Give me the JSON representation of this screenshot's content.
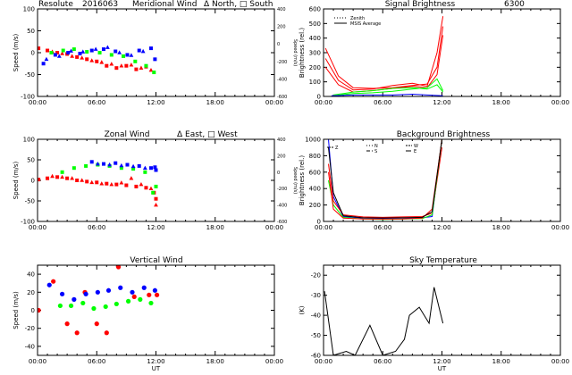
{
  "colors": {
    "red": "#ff0000",
    "green": "#00ff00",
    "blue": "#0000ff",
    "black": "#000000"
  },
  "chart_data": [
    {
      "id": "meridional",
      "type": "scatter",
      "title_parts": [
        "Resolute",
        "2016063",
        "Meridional Wind",
        "Δ North, □ South"
      ],
      "xlabel": "",
      "ylabel": "Speed (m/s)",
      "ylabel_right": "Speed (m/s)",
      "xlim": [
        0,
        24
      ],
      "ylim": [
        -100,
        100
      ],
      "xticks": [
        0,
        6,
        12,
        18,
        24
      ],
      "yticks": [
        -100,
        -50,
        0,
        50,
        100
      ],
      "y2lim": [
        -600,
        400
      ],
      "y2ticks": [
        -600,
        -400,
        -200,
        0,
        200,
        400
      ],
      "series": [
        {
          "color": "red",
          "marker": "square",
          "x": [
            0.1,
            1.0,
            2.0,
            3.0,
            4.0,
            5.0,
            6.0,
            7.0,
            8.0,
            9.0,
            10.0,
            11.0
          ],
          "y": [
            10,
            5,
            0,
            -3,
            -10,
            -15,
            -20,
            -30,
            -35,
            -30,
            -38,
            -32
          ]
        },
        {
          "color": "red",
          "marker": "triangle",
          "x": [
            1.5,
            2.5,
            3.5,
            4.5,
            5.5,
            6.5,
            7.5,
            8.5,
            9.5,
            10.5,
            11.5
          ],
          "y": [
            2,
            -2,
            -8,
            -12,
            -18,
            -22,
            -26,
            -30,
            -28,
            -35,
            -40
          ]
        },
        {
          "color": "green",
          "marker": "square",
          "x": [
            1.4,
            2.6,
            3.7,
            5.0,
            6.3,
            7.5,
            8.7,
            9.9,
            11.0,
            11.8
          ],
          "y": [
            0,
            5,
            8,
            2,
            0,
            -5,
            -8,
            -20,
            -30,
            -45
          ]
        },
        {
          "color": "blue",
          "marker": "square",
          "x": [
            0.6,
            1.8,
            3.1,
            4.3,
            5.5,
            6.7,
            7.9,
            9.1,
            10.3,
            11.5,
            11.9
          ],
          "y": [
            -25,
            -5,
            0,
            -2,
            5,
            8,
            3,
            -5,
            5,
            10,
            -15
          ]
        },
        {
          "color": "blue",
          "marker": "triangle",
          "x": [
            0.9,
            2.2,
            3.4,
            4.6,
            5.9,
            7.1,
            8.3,
            9.5,
            10.7
          ],
          "y": [
            -15,
            -8,
            4,
            2,
            8,
            12,
            0,
            -6,
            3
          ]
        }
      ]
    },
    {
      "id": "signal",
      "type": "line",
      "title_parts": [
        "Signal Brightness",
        "6300"
      ],
      "xlabel": "",
      "ylabel": "Brightness (rel.)",
      "xlim": [
        0,
        24
      ],
      "ylim": [
        0,
        600
      ],
      "xticks": [
        0,
        6,
        12,
        18,
        24
      ],
      "yticks": [
        0,
        100,
        200,
        300,
        400,
        500,
        600
      ],
      "legend": [
        "Zenith",
        "MSIS Average"
      ],
      "series": [
        {
          "color": "red",
          "x": [
            0.2,
            1.5,
            3,
            5,
            7,
            9,
            10.5,
            11.5,
            12.1
          ],
          "y": [
            330,
            140,
            60,
            55,
            60,
            75,
            85,
            200,
            480
          ]
        },
        {
          "color": "red",
          "x": [
            0.2,
            1.5,
            3,
            5,
            7,
            9,
            10.5,
            11.5,
            12.1
          ],
          "y": [
            260,
            110,
            45,
            50,
            75,
            90,
            70,
            300,
            550
          ]
        },
        {
          "color": "red",
          "x": [
            0.2,
            1.5,
            3,
            5,
            7,
            9,
            10.5,
            11.5,
            12.1
          ],
          "y": [
            200,
            80,
            30,
            40,
            55,
            70,
            60,
            150,
            420
          ]
        },
        {
          "color": "green",
          "x": [
            1.0,
            3,
            5,
            7,
            9,
            10.5,
            11.5,
            12.1
          ],
          "y": [
            10,
            30,
            40,
            55,
            60,
            50,
            80,
            30
          ]
        },
        {
          "color": "green",
          "x": [
            1.0,
            3,
            5,
            7,
            9,
            10.5,
            11.5,
            12.1
          ],
          "y": [
            5,
            20,
            25,
            35,
            50,
            60,
            120,
            40
          ]
        },
        {
          "color": "blue",
          "x": [
            0.8,
            3,
            5,
            7,
            9,
            10.5,
            12.1
          ],
          "y": [
            5,
            10,
            10,
            10,
            15,
            10,
            5
          ]
        }
      ]
    },
    {
      "id": "zonal",
      "type": "scatter",
      "title_parts": [
        "Zonal Wind",
        "Δ East, □ West"
      ],
      "xlabel": "",
      "ylabel": "Speed (m/s)",
      "ylabel_right": "Speed (m/s)",
      "xlim": [
        0,
        24
      ],
      "ylim": [
        -100,
        100
      ],
      "xticks": [
        0,
        6,
        12,
        18,
        24
      ],
      "yticks": [
        -100,
        -50,
        0,
        50,
        100
      ],
      "y2lim": [
        -600,
        400
      ],
      "y2ticks": [
        -600,
        -400,
        -200,
        0,
        200,
        400
      ],
      "series": [
        {
          "color": "red",
          "marker": "square",
          "x": [
            0.1,
            1.0,
            2.0,
            3.0,
            4.0,
            5.0,
            6.0,
            7.0,
            8.0,
            9.0,
            10.0,
            11.0,
            11.8,
            12.0
          ],
          "y": [
            2,
            5,
            8,
            5,
            0,
            -3,
            -5,
            -8,
            -10,
            -12,
            -15,
            -18,
            -30,
            -45
          ]
        },
        {
          "color": "red",
          "marker": "triangle",
          "x": [
            1.5,
            2.5,
            3.5,
            4.5,
            5.5,
            6.5,
            7.5,
            8.5,
            9.5,
            10.5,
            11.5,
            12.0
          ],
          "y": [
            10,
            8,
            5,
            0,
            -5,
            -8,
            -10,
            -6,
            5,
            -10,
            -20,
            -60
          ]
        },
        {
          "color": "green",
          "marker": "square",
          "x": [
            2.5,
            3.7,
            4.9,
            6.1,
            7.3,
            8.5,
            9.7,
            10.9,
            11.7,
            12.0
          ],
          "y": [
            20,
            30,
            35,
            38,
            35,
            30,
            28,
            20,
            -30,
            -15
          ]
        },
        {
          "color": "blue",
          "marker": "square",
          "x": [
            5.5,
            6.7,
            7.9,
            9.1,
            10.3,
            11.5,
            11.9,
            12.0
          ],
          "y": [
            45,
            40,
            42,
            38,
            35,
            30,
            32,
            25
          ]
        },
        {
          "color": "blue",
          "marker": "triangle",
          "x": [
            6.1,
            7.3,
            8.5,
            9.7,
            10.9
          ],
          "y": [
            40,
            38,
            36,
            34,
            30
          ]
        }
      ]
    },
    {
      "id": "background",
      "type": "line",
      "title_parts": [
        "Background Brightness"
      ],
      "xlabel": "",
      "ylabel": "Brightness (rel.)",
      "xlim": [
        0,
        24
      ],
      "ylim": [
        0,
        1000
      ],
      "xticks": [
        0,
        6,
        12,
        18,
        24
      ],
      "yticks": [
        0,
        200,
        400,
        600,
        800,
        1000
      ],
      "legend": [
        "Z",
        "N",
        "S",
        "W",
        "E"
      ],
      "series": [
        {
          "color": "blue",
          "x": [
            0.5,
            1.0,
            2.0,
            4.0,
            6.0,
            8.0,
            10.0,
            11.0,
            12.0
          ],
          "y": [
            1000,
            300,
            60,
            40,
            38,
            40,
            45,
            60,
            1000
          ]
        },
        {
          "color": "red",
          "x": [
            0.5,
            1.0,
            2.0,
            4.0,
            6.0,
            8.0,
            10.0,
            11.0,
            12.0
          ],
          "y": [
            700,
            250,
            80,
            55,
            50,
            55,
            60,
            100,
            900
          ]
        },
        {
          "color": "green",
          "x": [
            0.5,
            1.0,
            2.0,
            4.0,
            6.0,
            8.0,
            10.0,
            11.0,
            12.0
          ],
          "y": [
            500,
            200,
            50,
            30,
            25,
            28,
            35,
            80,
            1000
          ]
        },
        {
          "color": "red",
          "x": [
            0.5,
            1.0,
            2.0,
            4.0,
            6.0,
            8.0,
            10.0,
            11.0,
            12.0
          ],
          "y": [
            600,
            150,
            40,
            30,
            28,
            30,
            40,
            150,
            1000
          ]
        },
        {
          "color": "black",
          "x": [
            0.5,
            1.0,
            2.0,
            4.0,
            6.0,
            8.0,
            10.0,
            11.0,
            12.0
          ],
          "y": [
            900,
            350,
            70,
            45,
            42,
            45,
            50,
            120,
            1000
          ]
        }
      ]
    },
    {
      "id": "vertical",
      "type": "scatter",
      "title_parts": [
        "Vertical Wind"
      ],
      "xlabel": "UT",
      "ylabel": "Speed (m/s)",
      "xlim": [
        0,
        24
      ],
      "ylim": [
        -50,
        50
      ],
      "xticks": [
        0,
        6,
        12,
        18,
        24
      ],
      "yticks": [
        -40,
        -20,
        0,
        20,
        40
      ],
      "series": [
        {
          "color": "red",
          "marker": "circle",
          "x": [
            0.1,
            1.6,
            3.0,
            4.0,
            4.8,
            6.0,
            7.0,
            8.2,
            9.8,
            11.3,
            12.1
          ],
          "y": [
            0,
            32,
            -15,
            -25,
            20,
            -15,
            -25,
            48,
            15,
            17,
            17
          ]
        },
        {
          "color": "green",
          "marker": "circle",
          "x": [
            2.3,
            3.4,
            4.6,
            5.7,
            6.9,
            8.0,
            9.2,
            10.4,
            11.5
          ],
          "y": [
            5,
            5,
            8,
            2,
            4,
            7,
            10,
            12,
            8
          ]
        },
        {
          "color": "blue",
          "marker": "circle",
          "x": [
            1.2,
            2.5,
            3.7,
            4.9,
            6.1,
            7.2,
            8.4,
            9.6,
            10.8,
            11.9
          ],
          "y": [
            28,
            18,
            12,
            18,
            20,
            22,
            25,
            20,
            25,
            22
          ]
        }
      ]
    },
    {
      "id": "skytemp",
      "type": "line",
      "title_parts": [
        "Sky Temperature"
      ],
      "xlabel": "UT",
      "ylabel": "(K)",
      "xlim": [
        0,
        24
      ],
      "ylim": [
        -60,
        -15
      ],
      "xticks": [
        0,
        6,
        12,
        18,
        24
      ],
      "yticks": [
        -60,
        -50,
        -40,
        -30,
        -20
      ],
      "series": [
        {
          "color": "black",
          "x": [
            0.1,
            1.0,
            2.3,
            3.2,
            4.7,
            6.0,
            7.3,
            8.2,
            8.7,
            9.7,
            10.7,
            11.2,
            12.1
          ],
          "y": [
            -28,
            -60,
            -58,
            -60,
            -45,
            -60,
            -58,
            -52,
            -40,
            -36,
            -44,
            -26,
            -44
          ]
        }
      ]
    }
  ]
}
